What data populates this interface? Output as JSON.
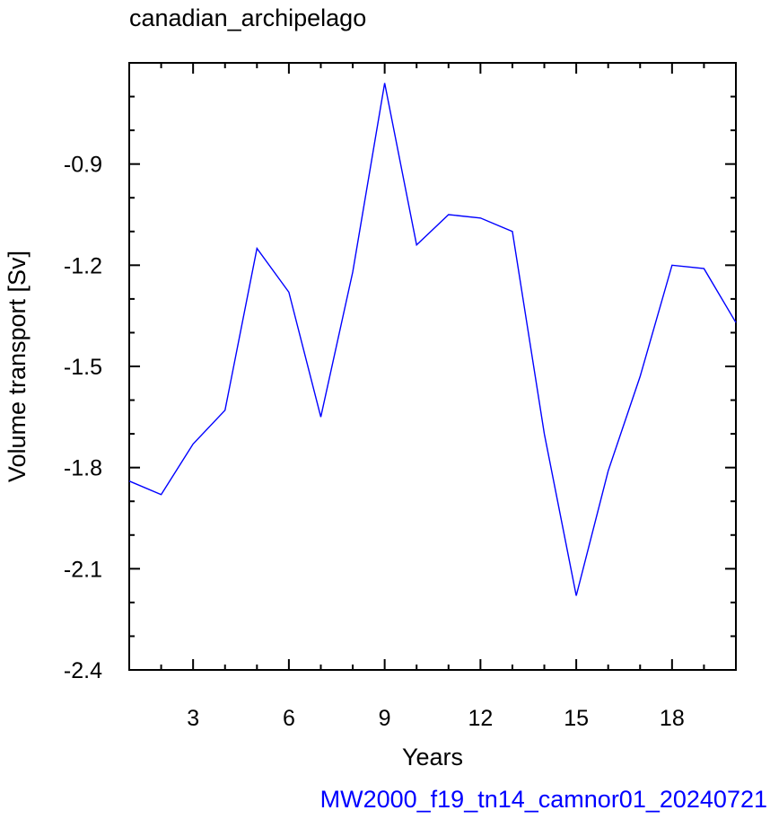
{
  "chart_data": {
    "type": "line",
    "title": "canadian_archipelago",
    "xlabel": "Years",
    "ylabel": "Volume transport [Sv]",
    "footer": "MW2000_f19_tn14_camnor01_20240721",
    "xlim": [
      1,
      20
    ],
    "ylim": [
      -2.4,
      -0.6
    ],
    "x_ticks": [
      3,
      6,
      9,
      12,
      15,
      18
    ],
    "y_ticks": [
      -0.9,
      -1.2,
      -1.5,
      -1.8,
      -2.1,
      -2.4
    ],
    "x_minor_step": 1,
    "y_minor_step": 0.1,
    "series": [
      {
        "color": "#0000ff",
        "x": [
          1,
          2,
          3,
          4,
          5,
          6,
          7,
          8,
          9,
          10,
          11,
          12,
          13,
          14,
          15,
          16,
          17,
          18,
          19,
          20
        ],
        "values": [
          -1.84,
          -1.88,
          -1.73,
          -1.63,
          -1.15,
          -1.28,
          -1.65,
          -1.22,
          -0.66,
          -1.14,
          -1.05,
          -1.06,
          -1.1,
          -1.7,
          -2.18,
          -1.81,
          -1.53,
          -1.2,
          -1.21,
          -1.37
        ]
      }
    ],
    "colors": {
      "line": "#0000ff",
      "footer": "#0000ff",
      "axes": "#000000"
    }
  }
}
